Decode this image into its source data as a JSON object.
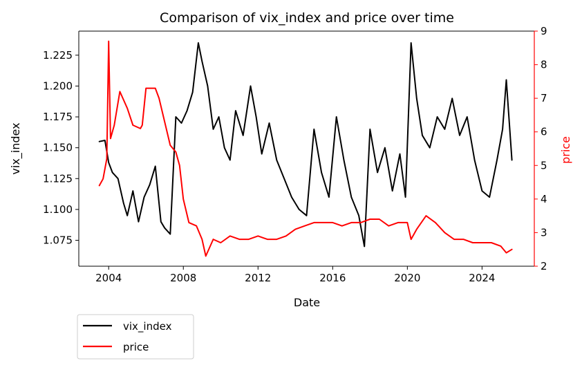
{
  "chart_data": {
    "type": "line",
    "title": "Comparison of vix_index and price over time",
    "xlabel": "Date",
    "ylabel_left": "vix_index",
    "ylabel_right": "price",
    "x_ticks": [
      "2004",
      "2008",
      "2012",
      "2016",
      "2020",
      "2024"
    ],
    "x_range": [
      2002.4,
      2026.8
    ],
    "y_left_ticks": [
      "1.075",
      "1.100",
      "1.125",
      "1.150",
      "1.175",
      "1.200",
      "1.225"
    ],
    "y_left_range": [
      1.054,
      1.2445
    ],
    "y_right_ticks": [
      "2",
      "3",
      "4",
      "5",
      "6",
      "7",
      "8",
      "9"
    ],
    "y_right_range": [
      2.0,
      9.0
    ],
    "grid": false,
    "legend_position": "below-left",
    "colors": {
      "vix_index": "#000000",
      "price": "#ff0000"
    },
    "series": [
      {
        "name": "vix_index",
        "axis": "left",
        "x": [
          2003.5,
          2003.8,
          2004.0,
          2004.2,
          2004.5,
          2004.8,
          2005.0,
          2005.3,
          2005.6,
          2005.9,
          2006.2,
          2006.5,
          2006.8,
          2007.0,
          2007.3,
          2007.6,
          2007.9,
          2008.2,
          2008.5,
          2008.8,
          2009.0,
          2009.3,
          2009.6,
          2009.9,
          2010.2,
          2010.5,
          2010.8,
          2011.2,
          2011.6,
          2011.9,
          2012.2,
          2012.6,
          2013.0,
          2013.4,
          2013.8,
          2014.2,
          2014.6,
          2015.0,
          2015.4,
          2015.8,
          2016.2,
          2016.6,
          2017.0,
          2017.4,
          2017.7,
          2018.0,
          2018.4,
          2018.8,
          2019.2,
          2019.6,
          2019.9,
          2020.2,
          2020.5,
          2020.8,
          2021.2,
          2021.6,
          2022.0,
          2022.4,
          2022.8,
          2023.2,
          2023.6,
          2024.0,
          2024.4,
          2024.8,
          2025.1,
          2025.3,
          2025.6
        ],
        "values": [
          1.155,
          1.156,
          1.138,
          1.13,
          1.125,
          1.105,
          1.095,
          1.115,
          1.09,
          1.11,
          1.12,
          1.135,
          1.09,
          1.085,
          1.08,
          1.175,
          1.17,
          1.18,
          1.195,
          1.235,
          1.22,
          1.2,
          1.165,
          1.175,
          1.15,
          1.14,
          1.18,
          1.16,
          1.2,
          1.175,
          1.145,
          1.17,
          1.14,
          1.125,
          1.11,
          1.1,
          1.095,
          1.165,
          1.13,
          1.11,
          1.175,
          1.14,
          1.11,
          1.095,
          1.07,
          1.165,
          1.13,
          1.15,
          1.115,
          1.145,
          1.11,
          1.235,
          1.19,
          1.16,
          1.15,
          1.175,
          1.165,
          1.19,
          1.16,
          1.175,
          1.14,
          1.115,
          1.11,
          1.14,
          1.165,
          1.205,
          1.14
        ]
      },
      {
        "name": "price",
        "axis": "right",
        "x": [
          2003.5,
          2003.7,
          2003.9,
          2004.0,
          2004.1,
          2004.3,
          2004.6,
          2005.0,
          2005.3,
          2005.7,
          2005.8,
          2006.0,
          2006.5,
          2006.7,
          2007.0,
          2007.3,
          2007.6,
          2007.8,
          2008.0,
          2008.3,
          2008.7,
          2009.0,
          2009.2,
          2009.6,
          2010.0,
          2010.5,
          2011.0,
          2011.5,
          2012.0,
          2012.5,
          2013.0,
          2013.5,
          2014.0,
          2014.5,
          2015.0,
          2015.5,
          2016.0,
          2016.5,
          2017.0,
          2017.5,
          2018.0,
          2018.5,
          2019.0,
          2019.5,
          2020.0,
          2020.2,
          2020.5,
          2021.0,
          2021.5,
          2022.0,
          2022.5,
          2023.0,
          2023.5,
          2024.0,
          2024.5,
          2025.0,
          2025.3,
          2025.6
        ],
        "values": [
          4.4,
          4.6,
          5.2,
          8.7,
          5.8,
          6.2,
          7.2,
          6.7,
          6.2,
          6.1,
          6.2,
          7.3,
          7.3,
          7.0,
          6.3,
          5.6,
          5.4,
          5.0,
          4.0,
          3.3,
          3.2,
          2.8,
          2.3,
          2.8,
          2.7,
          2.9,
          2.8,
          2.8,
          2.9,
          2.8,
          2.8,
          2.9,
          3.1,
          3.2,
          3.3,
          3.3,
          3.3,
          3.2,
          3.3,
          3.3,
          3.4,
          3.4,
          3.2,
          3.3,
          3.3,
          2.8,
          3.1,
          3.5,
          3.3,
          3.0,
          2.8,
          2.8,
          2.7,
          2.7,
          2.7,
          2.6,
          2.4,
          2.5
        ]
      }
    ]
  }
}
